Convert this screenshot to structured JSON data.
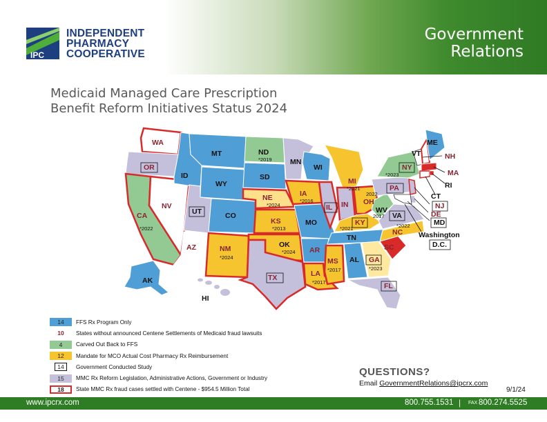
{
  "header": {
    "logo_mark": "IPC",
    "logo_lines": [
      "INDEPENDENT",
      "PHARMACY",
      "COOPERATIVE"
    ],
    "section_lines": [
      "Government",
      "Relations"
    ]
  },
  "title_lines": [
    "Medicaid Managed Care Prescription",
    "Benefit Reform Initiatives Status 2024"
  ],
  "colors": {
    "ffs": "#4f9fd6",
    "carved_out": "#93c993",
    "mandate": "#f6c42f",
    "reform": "#c4c0dc",
    "none": "#ffffff",
    "settled_border": "#d92a2a",
    "brand_green": "#2e7d24",
    "brand_navy": "#1d3f80"
  },
  "map": {
    "labels": {
      "WA": "WA",
      "OR": "OR",
      "CA": "CA",
      "NV": "NV",
      "ID": "ID",
      "MT": "MT",
      "WY": "WY",
      "UT": "UT",
      "AZ": "AZ",
      "CO": "CO",
      "NM": "NM",
      "ND": "ND",
      "SD": "SD",
      "NE": "NE",
      "KS": "KS",
      "OK": "OK",
      "TX": "TX",
      "MN": "MN",
      "IA": "IA",
      "MO": "MO",
      "AR": "AR",
      "LA": "LA",
      "WI": "WI",
      "IL": "IL",
      "MS": "MS",
      "MI": "MI",
      "IN": "IN",
      "KY": "KY",
      "TN": "TN",
      "AL": "AL",
      "OH": "OH",
      "GA": "GA",
      "FL": "FL",
      "SC": "SC",
      "NC": "NC",
      "VA": "VA",
      "WV": "WV",
      "PA": "PA",
      "NY": "NY",
      "VT": "VT",
      "ME": "ME",
      "NH": "NH",
      "MA": "MA",
      "RI": "RI",
      "CT": "CT",
      "NJ": "NJ",
      "DE": "DE",
      "MD": "MD",
      "AK": "AK",
      "HI": "HI",
      "DC_line1": "Washington",
      "DC_line2": "D.C."
    },
    "notes": {
      "ND": "*2019",
      "NE": "*2024",
      "IA": "*2016",
      "KS": "*2013",
      "OK": "*2024",
      "NM": "*2024",
      "CA": "*2022",
      "MS": "*2017",
      "LA": "*2017",
      "MI": "*2021",
      "KY": "*2021",
      "OH": "2022",
      "WV": "2017",
      "NC": "*2022",
      "GA": "*2023",
      "NY": "*2023"
    }
  },
  "legend": [
    {
      "count": "14",
      "label": "FFS Rx Program Only",
      "style": "ffs"
    },
    {
      "count": "10",
      "label": "States without announced Centene Settlements of Medicaid fraud lawsuits",
      "style": "plain"
    },
    {
      "count": "4",
      "label": "Carved Out Back to FFS",
      "style": "carved_out"
    },
    {
      "count": "12",
      "label": "Mandate for MCO Actual Cost Pharmacy Rx Reimbursement",
      "style": "mandate"
    },
    {
      "count": "14",
      "label": "Government Conducted Study",
      "style": "study"
    },
    {
      "count": "15",
      "label": "MMC Rx Reform Legislation, Administrative Actions, Government or Industry",
      "style": "reform"
    },
    {
      "count": "18",
      "label": "State MMC Rx fraud cases settled with Centene - $954.5 Million Total",
      "style": "settled"
    }
  ],
  "questions": {
    "heading": "QUESTIONS?",
    "email_prefix": "Email ",
    "email": "GovernmentRelations@ipcrx.com"
  },
  "date": "9/1/24",
  "footer": {
    "website": "www.ipcrx.com",
    "phone": "800.755.1531",
    "separator": "|",
    "fax_label": "FAX",
    "fax": "800.274.5525"
  }
}
